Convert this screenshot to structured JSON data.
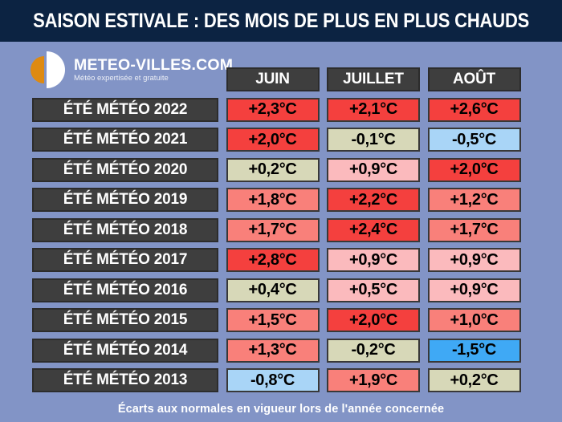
{
  "banner": {
    "title": "SAISON ESTIVALE : DES MOIS DE PLUS EN PLUS CHAUDS"
  },
  "logo": {
    "name": "METEO-VILLES.COM",
    "tagline": "Météo expertisée et gratuite"
  },
  "columns": [
    "JUIN",
    "JUILLET",
    "AOÛT"
  ],
  "rows": [
    {
      "label": "ÉTÉ MÉTÉO 2022",
      "values": [
        "+2,3°C",
        "+2,1°C",
        "+2,6°C"
      ],
      "colors": [
        "red",
        "red",
        "red"
      ]
    },
    {
      "label": "ÉTÉ MÉTÉO 2021",
      "values": [
        "+2,0°C",
        "-0,1°C",
        "-0,5°C"
      ],
      "colors": [
        "red",
        "beige",
        "light_blue"
      ]
    },
    {
      "label": "ÉTÉ MÉTÉO 2020",
      "values": [
        "+0,2°C",
        "+0,9°C",
        "+2,0°C"
      ],
      "colors": [
        "beige",
        "pink",
        "red"
      ]
    },
    {
      "label": "ÉTÉ MÉTÉO 2019",
      "values": [
        "+1,8°C",
        "+2,2°C",
        "+1,2°C"
      ],
      "colors": [
        "salmon",
        "red",
        "salmon"
      ]
    },
    {
      "label": "ÉTÉ MÉTÉO 2018",
      "values": [
        "+1,7°C",
        "+2,4°C",
        "+1,7°C"
      ],
      "colors": [
        "salmon",
        "red",
        "salmon"
      ]
    },
    {
      "label": "ÉTÉ MÉTÉO 2017",
      "values": [
        "+2,8°C",
        "+0,9°C",
        "+0,9°C"
      ],
      "colors": [
        "red",
        "pink",
        "pink"
      ]
    },
    {
      "label": "ÉTÉ MÉTÉO 2016",
      "values": [
        "+0,4°C",
        "+0,5°C",
        "+0,9°C"
      ],
      "colors": [
        "beige",
        "pink",
        "pink"
      ]
    },
    {
      "label": "ÉTÉ MÉTÉO 2015",
      "values": [
        "+1,5°C",
        "+2,0°C",
        "+1,0°C"
      ],
      "colors": [
        "salmon",
        "red",
        "salmon"
      ]
    },
    {
      "label": "ÉTÉ MÉTÉO 2014",
      "values": [
        "+1,3°C",
        "-0,2°C",
        "-1,5°C"
      ],
      "colors": [
        "salmon",
        "beige",
        "blue"
      ]
    },
    {
      "label": "ÉTÉ MÉTÉO 2013",
      "values": [
        "-0,8°C",
        "+1,9°C",
        "+0,2°C"
      ],
      "colors": [
        "light_blue",
        "salmon",
        "beige"
      ]
    }
  ],
  "footer": {
    "caption": "Écarts aux normales en vigueur lors de l'année concernée"
  },
  "palette": {
    "red": "#f4403e",
    "salmon": "#f9807a",
    "pink": "#fbbabd",
    "beige": "#d7d8b8",
    "light_blue": "#a9d5f7",
    "blue": "#3fa9f5",
    "background": "#8294c6",
    "banner": "#0c2342",
    "dark_box": "#3e3e3e",
    "logo_orange": "#de8a11"
  },
  "chart_data": {
    "type": "table",
    "title": "SAISON ESTIVALE : DES MOIS DE PLUS EN PLUS CHAUDS",
    "columns": [
      "JUIN",
      "JUILLET",
      "AOÛT"
    ],
    "rows": [
      {
        "label": "ÉTÉ MÉTÉO 2022",
        "year": 2022,
        "values": [
          2.3,
          2.1,
          2.6
        ]
      },
      {
        "label": "ÉTÉ MÉTÉO 2021",
        "year": 2021,
        "values": [
          2.0,
          -0.1,
          -0.5
        ]
      },
      {
        "label": "ÉTÉ MÉTÉO 2020",
        "year": 2020,
        "values": [
          0.2,
          0.9,
          2.0
        ]
      },
      {
        "label": "ÉTÉ MÉTÉO 2019",
        "year": 2019,
        "values": [
          1.8,
          2.2,
          1.2
        ]
      },
      {
        "label": "ÉTÉ MÉTÉO 2018",
        "year": 2018,
        "values": [
          1.7,
          2.4,
          1.7
        ]
      },
      {
        "label": "ÉTÉ MÉTÉO 2017",
        "year": 2017,
        "values": [
          2.8,
          0.9,
          0.9
        ]
      },
      {
        "label": "ÉTÉ MÉTÉO 2016",
        "year": 2016,
        "values": [
          0.4,
          0.5,
          0.9
        ]
      },
      {
        "label": "ÉTÉ MÉTÉO 2015",
        "year": 2015,
        "values": [
          1.5,
          2.0,
          1.0
        ]
      },
      {
        "label": "ÉTÉ MÉTÉO 2014",
        "year": 2014,
        "values": [
          1.3,
          -0.2,
          -1.5
        ]
      },
      {
        "label": "ÉTÉ MÉTÉO 2013",
        "year": 2013,
        "values": [
          -0.8,
          1.9,
          0.2
        ]
      }
    ],
    "units": "°C",
    "note": "Écarts aux normales en vigueur lors de l'année concernée"
  }
}
